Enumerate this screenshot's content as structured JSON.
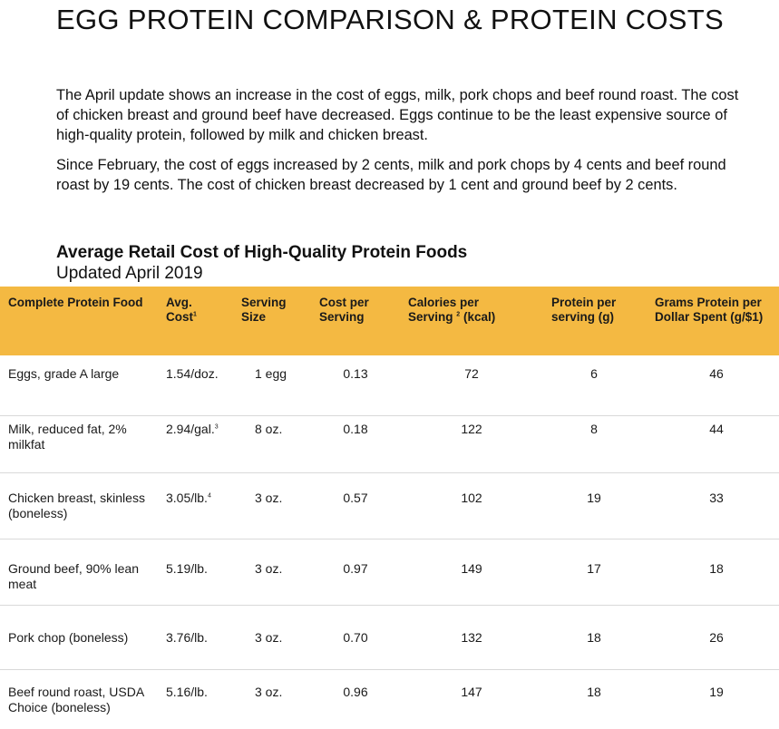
{
  "title": "EGG PROTEIN COMPARISON & PROTEIN COSTS",
  "paragraphs": [
    "The April update shows an increase in the cost of eggs, milk, pork chops and beef round roast. The cost of chicken breast and ground beef have decreased. Eggs continue to be the least expensive source of high-quality protein, followed by milk and chicken breast.",
    "Since February, the cost of eggs increased by 2 cents, milk and pork chops by 4 cents and beef round roast by 19 cents. The cost of chicken breast decreased by 1 cent and ground beef by 2 cents."
  ],
  "table": {
    "title": "Average Retail Cost of High-Quality Protein Foods",
    "subtitle": "Updated April 2019",
    "headers": {
      "food": "Complete Protein Food",
      "cost": "Avg. Cost",
      "cost_note": "1",
      "serving": "Serving Size",
      "cost_per": "Cost per Serving",
      "calories_a": "Calories per Serving",
      "calories_note": "2",
      "calories_b": "(kcal)",
      "protein": "Protein per serving (g)",
      "grams": "Grams Protein per Dollar Spent (g/$1)"
    },
    "rows": [
      {
        "food": "Eggs, grade A large",
        "cost": "1.54/doz.",
        "note": "",
        "serving": "1 egg",
        "cost_per": "0.13",
        "calories": "72",
        "protein": "6",
        "grams": "46"
      },
      {
        "food": "Milk, reduced fat, 2% milkfat",
        "cost": "2.94/gal.",
        "note": "3",
        "serving": "8 oz.",
        "cost_per": "0.18",
        "calories": "122",
        "protein": "8",
        "grams": "44"
      },
      {
        "food": "Chicken breast, skinless (boneless)",
        "cost": "3.05/lb.",
        "note": "4",
        "serving": "3 oz.",
        "cost_per": "0.57",
        "calories": "102",
        "protein": "19",
        "grams": "33"
      },
      {
        "food": "Ground beef, 90% lean meat",
        "cost": "5.19/lb.",
        "note": "",
        "serving": "3 oz.",
        "cost_per": "0.97",
        "calories": "149",
        "protein": "17",
        "grams": "18"
      },
      {
        "food": "Pork chop (boneless)",
        "cost": "3.76/lb.",
        "note": "",
        "serving": "3 oz.",
        "cost_per": "0.70",
        "calories": "132",
        "protein": "18",
        "grams": "26"
      },
      {
        "food": "Beef round roast, USDA Choice (boneless)",
        "cost": "5.16/lb.",
        "note": "",
        "serving": "3 oz.",
        "cost_per": "0.96",
        "calories": "147",
        "protein": "18",
        "grams": "19"
      }
    ]
  }
}
